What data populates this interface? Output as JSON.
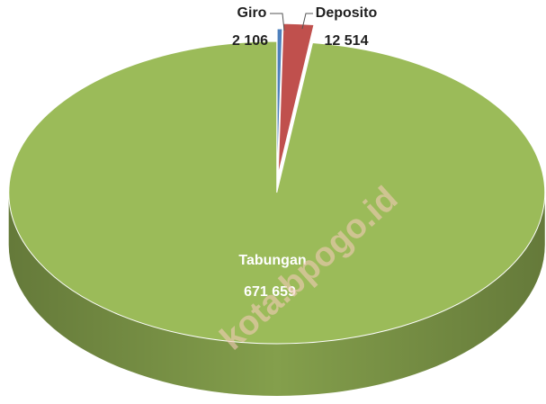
{
  "chart_data": {
    "type": "pie",
    "categories": [
      "Giro",
      "Deposito",
      "Tabungan"
    ],
    "values": [
      2106,
      12514,
      671659
    ],
    "value_labels": [
      "2 106",
      "12 514",
      "671 659"
    ],
    "colors": [
      "#4f81bd",
      "#c0504d",
      "#9bbb59"
    ],
    "watermark": "kota.bpogo.id"
  }
}
